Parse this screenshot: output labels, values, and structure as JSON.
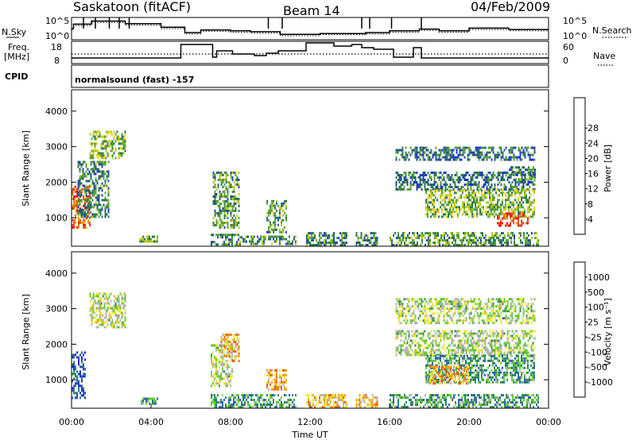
{
  "header": {
    "station": "Saskatoon (fitACF)",
    "beam": "Beam 14",
    "date": "04/Feb/2009"
  },
  "noise_panel": {
    "left_label": "N.Sky",
    "right_label": "N.Search",
    "ytick_top": "10^5",
    "ytick_bottom": "10^0",
    "levels": [
      {
        "t": 0.0,
        "v": 2.5
      },
      {
        "t": 0.1,
        "v": 3.5
      },
      {
        "t": 1.0,
        "v": 4.2
      },
      {
        "t": 2.7,
        "v": 3.6
      },
      {
        "t": 4.5,
        "v": 2.8
      },
      {
        "t": 5.7,
        "v": 1.6
      },
      {
        "t": 6.5,
        "v": 2.2
      },
      {
        "t": 8.0,
        "v": 2.0
      },
      {
        "t": 9.0,
        "v": 1.8
      },
      {
        "t": 10.5,
        "v": 1.2
      },
      {
        "t": 12.5,
        "v": 1.4
      },
      {
        "t": 14.8,
        "v": 1.6
      },
      {
        "t": 16.0,
        "v": 2.0
      },
      {
        "t": 17.5,
        "v": 2.4
      },
      {
        "t": 18.5,
        "v": 2.0
      },
      {
        "t": 20.0,
        "v": 2.6
      },
      {
        "t": 22.0,
        "v": 2.3
      },
      {
        "t": 24.0,
        "v": 2.3
      }
    ],
    "spikes": [
      0.6,
      1.2,
      1.9,
      2.4,
      2.9,
      9.9,
      10.6,
      14.6,
      15.0,
      16.1,
      17.6
    ]
  },
  "freq_panel": {
    "left_label_1": "Freq.",
    "left_label_2": "[MHz]",
    "right_label": "Nave",
    "left_ticks": [
      "18",
      "8"
    ],
    "right_ticks": [
      "60",
      "0"
    ],
    "cpid_label": "CPID",
    "freq_steps": [
      {
        "t": 0.0,
        "v": 9.5
      },
      {
        "t": 5.5,
        "v": 18.0
      },
      {
        "t": 7.1,
        "v": 10.0
      },
      {
        "t": 7.3,
        "v": 14.0
      },
      {
        "t": 8.1,
        "v": 12.0
      },
      {
        "t": 9.2,
        "v": 11.0
      },
      {
        "t": 9.8,
        "v": 12.5
      },
      {
        "t": 10.4,
        "v": 14.0
      },
      {
        "t": 11.8,
        "v": 19.0
      },
      {
        "t": 13.2,
        "v": 17.0
      },
      {
        "t": 14.1,
        "v": 18.0
      },
      {
        "t": 14.6,
        "v": 16.0
      },
      {
        "t": 15.2,
        "v": 15.0
      },
      {
        "t": 16.2,
        "v": 10.0
      },
      {
        "t": 17.2,
        "v": 16.0
      },
      {
        "t": 17.6,
        "v": 9.5
      },
      {
        "t": 24.0,
        "v": 9.5
      }
    ],
    "nave_level": 12.0
  },
  "cpid": {
    "text": "normalsound (fast) -157"
  },
  "chart_data": [
    {
      "type": "heatmap",
      "panel": "power",
      "ylabel": "Slant Range [km]",
      "y_ticks": [
        "1000",
        "2000",
        "3000",
        "4000"
      ],
      "ylim": [
        200,
        4600
      ],
      "colorbar": {
        "label": "Power [dB]",
        "ticks": [
          "4",
          "8",
          "12",
          "16",
          "20",
          "24",
          "28"
        ],
        "colors": [
          "#1e32e6",
          "#2346a6",
          "#2a7a52",
          "#5aa03a",
          "#b4c81e",
          "#f0d21e",
          "#f0961e",
          "#e65a14",
          "#e61e14"
        ]
      },
      "regions": [
        {
          "t0": 0.9,
          "t1": 2.7,
          "r0": 2650,
          "r1": 3450,
          "level": 0.45
        },
        {
          "t0": 0.0,
          "t1": 0.9,
          "r0": 700,
          "r1": 1900,
          "level": 0.8
        },
        {
          "t0": 0.3,
          "t1": 1.9,
          "r0": 1000,
          "r1": 2600,
          "level": 0.3
        },
        {
          "t0": 3.4,
          "t1": 4.3,
          "r0": 320,
          "r1": 500,
          "level": 0.4
        },
        {
          "t0": 7.0,
          "t1": 8.6,
          "r0": 250,
          "r1": 550,
          "level": 0.3
        },
        {
          "t0": 7.1,
          "t1": 8.4,
          "r0": 700,
          "r1": 2300,
          "level": 0.35
        },
        {
          "t0": 8.6,
          "t1": 11.3,
          "r0": 250,
          "r1": 500,
          "level": 0.3
        },
        {
          "t0": 9.8,
          "t1": 10.8,
          "r0": 600,
          "r1": 1500,
          "level": 0.35
        },
        {
          "t0": 11.8,
          "t1": 13.8,
          "r0": 250,
          "r1": 600,
          "level": 0.3
        },
        {
          "t0": 14.3,
          "t1": 15.4,
          "r0": 250,
          "r1": 600,
          "level": 0.3
        },
        {
          "t0": 16.0,
          "t1": 23.5,
          "r0": 250,
          "r1": 600,
          "level": 0.35
        },
        {
          "t0": 16.3,
          "t1": 23.3,
          "r0": 1800,
          "r1": 2300,
          "level": 0.25
        },
        {
          "t0": 16.3,
          "t1": 23.3,
          "r0": 2600,
          "r1": 3000,
          "level": 0.25
        },
        {
          "t0": 17.8,
          "t1": 23.3,
          "r0": 1000,
          "r1": 1800,
          "level": 0.45
        },
        {
          "t0": 21.4,
          "t1": 23.0,
          "r0": 800,
          "r1": 1150,
          "level": 0.9
        },
        {
          "t0": 22.0,
          "t1": 23.3,
          "r0": 2100,
          "r1": 2450,
          "level": 0.3
        }
      ]
    },
    {
      "type": "heatmap",
      "panel": "velocity",
      "xlabel": "Time UT",
      "ylabel": "Slant Range [km]",
      "x_ticks": [
        "00:00",
        "04:00",
        "08:00",
        "12:00",
        "16:00",
        "20:00",
        "00:00"
      ],
      "y_ticks": [
        "1000",
        "2000",
        "3000",
        "4000"
      ],
      "ylim": [
        200,
        4600
      ],
      "colorbar": {
        "label": "Velocity [m s⁻¹]",
        "ticks": [
          "1000",
          "500",
          "100",
          "25",
          "-25",
          "-100",
          "-500",
          "-1000"
        ],
        "colors": [
          "#1e32c8",
          "#2864aa",
          "#2f8c5a",
          "#64c832",
          "#b4b4b4",
          "#f0e628",
          "#f0a01e",
          "#e66414",
          "#e61e14"
        ]
      },
      "regions": [
        {
          "t0": 0.0,
          "t1": 0.7,
          "r0": 500,
          "r1": 1800,
          "level": 0.15
        },
        {
          "t0": 0.9,
          "t1": 2.7,
          "r0": 2500,
          "r1": 3450,
          "level": 0.5
        },
        {
          "t0": 3.4,
          "t1": 4.3,
          "r0": 320,
          "r1": 500,
          "level": 0.3
        },
        {
          "t0": 7.0,
          "t1": 11.3,
          "r0": 250,
          "r1": 600,
          "level": 0.3
        },
        {
          "t0": 7.0,
          "t1": 8.1,
          "r0": 800,
          "r1": 2000,
          "level": 0.5
        },
        {
          "t0": 7.5,
          "t1": 8.4,
          "r0": 1500,
          "r1": 2300,
          "level": 0.7
        },
        {
          "t0": 9.8,
          "t1": 10.8,
          "r0": 700,
          "r1": 1300,
          "level": 0.7
        },
        {
          "t0": 11.8,
          "t1": 13.8,
          "r0": 250,
          "r1": 600,
          "level": 0.65
        },
        {
          "t0": 14.3,
          "t1": 15.4,
          "r0": 250,
          "r1": 600,
          "level": 0.65
        },
        {
          "t0": 16.0,
          "t1": 23.5,
          "r0": 250,
          "r1": 600,
          "level": 0.3
        },
        {
          "t0": 16.3,
          "t1": 23.3,
          "r0": 1700,
          "r1": 2400,
          "level": 0.48
        },
        {
          "t0": 16.3,
          "t1": 23.3,
          "r0": 2600,
          "r1": 3300,
          "level": 0.48
        },
        {
          "t0": 17.8,
          "t1": 23.3,
          "r0": 900,
          "r1": 1700,
          "level": 0.3
        },
        {
          "t0": 18.0,
          "t1": 20.0,
          "r0": 900,
          "r1": 1400,
          "level": 0.7
        }
      ]
    }
  ]
}
